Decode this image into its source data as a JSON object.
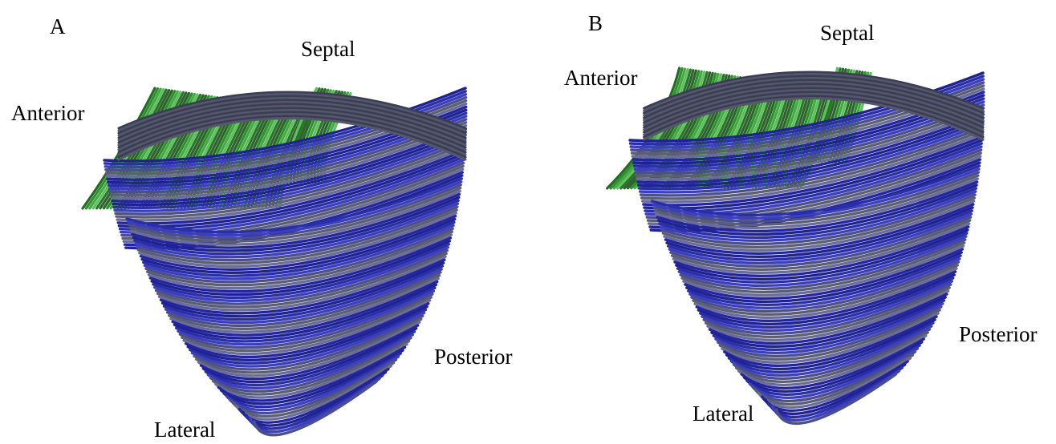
{
  "panels": [
    {
      "label": "A",
      "annotations": {
        "top": "Septal",
        "left": "Anterior",
        "right": "Posterior",
        "bottom": "Lateral"
      }
    },
    {
      "label": "B",
      "annotations": {
        "top": "Septal",
        "left": "Anterior",
        "right": "Posterior",
        "bottom": "Lateral"
      }
    }
  ]
}
